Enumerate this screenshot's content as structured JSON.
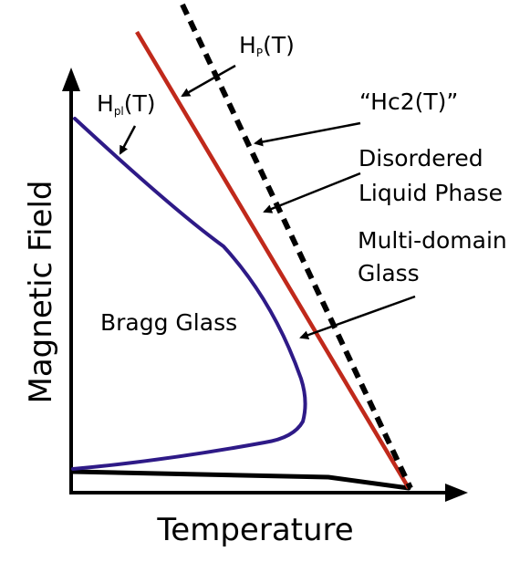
{
  "diagram": {
    "x_axis_label": "Temperature",
    "y_axis_label": "Magnetic Field",
    "regions": {
      "bragg_glass": "Bragg Glass",
      "disordered_liquid_line1": "Disordered",
      "disordered_liquid_line2": "Liquid Phase",
      "multi_domain_line1": "Multi-domain",
      "multi_domain_line2": "Glass"
    },
    "curve_labels": {
      "hp_main": "H",
      "hp_sub": "P",
      "hp_suffix": "(T)",
      "hpl_main": "H",
      "hpl_sub": "pl",
      "hpl_suffix": "(T)",
      "hc2": "“Hc2(T)”"
    },
    "colors": {
      "hp_line": "#c0291b",
      "hpl_curve": "#2e1a87",
      "hc2_line": "#000000",
      "axes": "#000000"
    }
  }
}
